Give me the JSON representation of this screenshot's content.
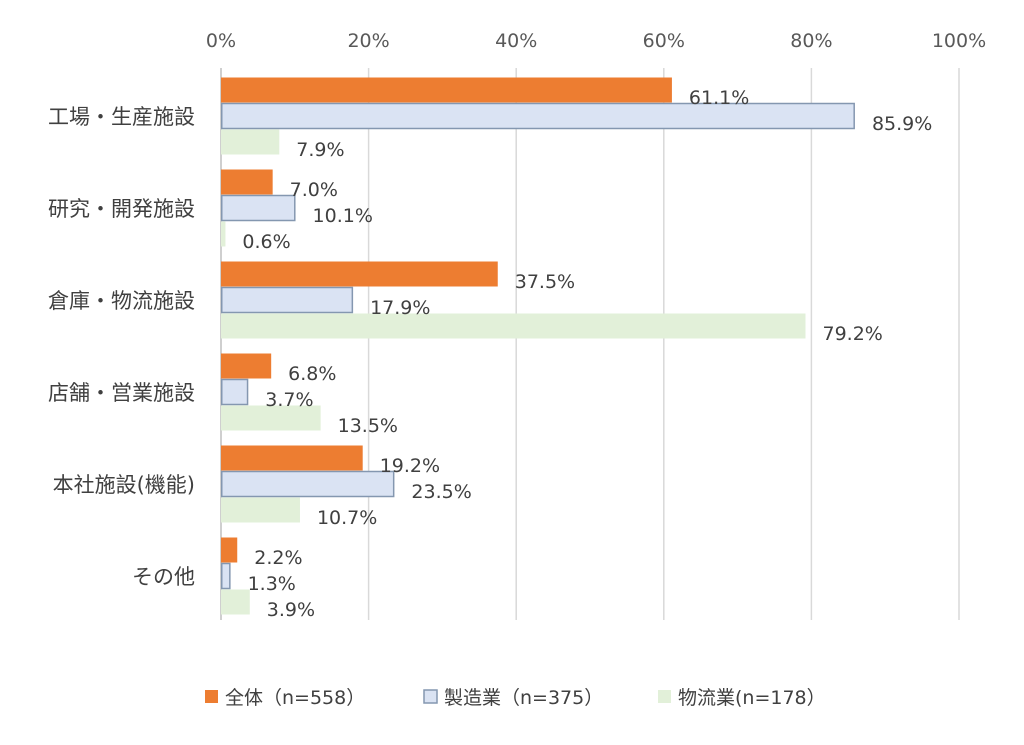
{
  "chart_data": {
    "type": "bar",
    "orientation": "horizontal",
    "categories": [
      "工場・生産施設",
      "研究・開発施設",
      "倉庫・物流施設",
      "店舗・営業施設",
      "本社施設(機能)",
      "その他"
    ],
    "series": [
      {
        "name": "全体（n=558）",
        "values": [
          61.1,
          7.0,
          37.5,
          6.8,
          19.2,
          2.2
        ],
        "labels": [
          "61.1%",
          "7.0%",
          "37.5%",
          "6.8%",
          "19.2%",
          "2.2%"
        ],
        "color": "#ed7d31",
        "stroke": "#ed7d31"
      },
      {
        "name": "製造業（n=375）",
        "values": [
          85.9,
          10.1,
          17.9,
          3.7,
          23.5,
          1.3
        ],
        "labels": [
          "85.9%",
          "10.1%",
          "17.9%",
          "3.7%",
          "23.5%",
          "1.3%"
        ],
        "color": "#dae3f3",
        "stroke": "#8497b0"
      },
      {
        "name": "物流業(n=178）",
        "values": [
          7.9,
          0.6,
          79.2,
          13.5,
          10.7,
          3.9
        ],
        "labels": [
          "7.9%",
          "0.6%",
          "79.2%",
          "13.5%",
          "10.7%",
          "3.9%"
        ],
        "color": "#e2f0d9",
        "stroke": "#e2f0d9"
      }
    ],
    "xlim": [
      0,
      100
    ],
    "xticks": [
      "0%",
      "20%",
      "40%",
      "60%",
      "80%",
      "100%"
    ],
    "x_axis_position": "top",
    "grid": true,
    "legend_position": "bottom"
  }
}
